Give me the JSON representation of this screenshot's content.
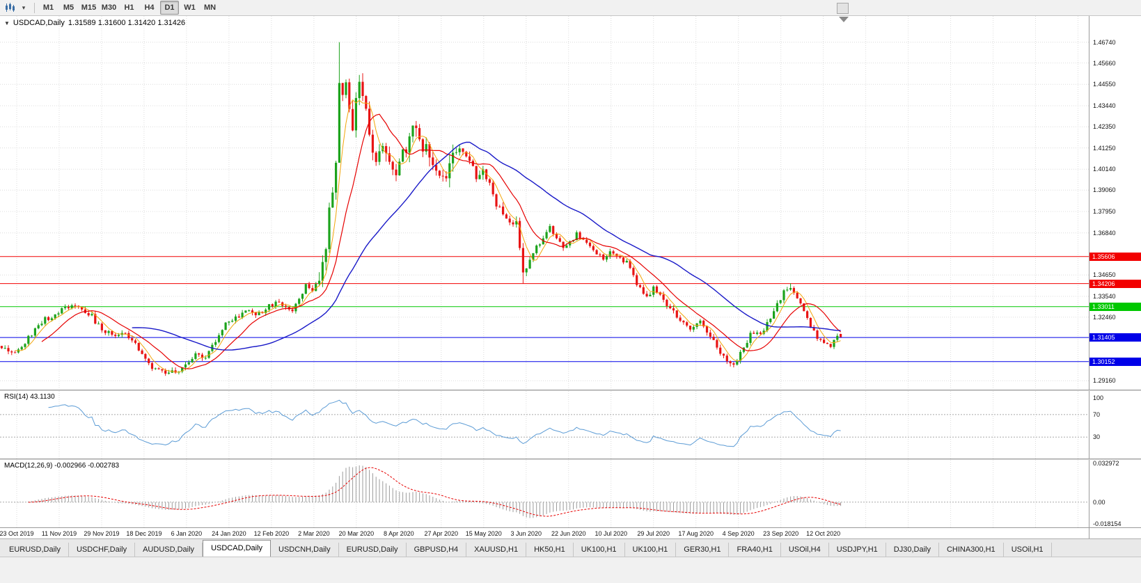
{
  "toolbar": {
    "chart_type_dropdown_icon": "▾",
    "timeframes": [
      {
        "label": "M1",
        "active": false
      },
      {
        "label": "M5",
        "active": false
      },
      {
        "label": "M15",
        "active": false
      },
      {
        "label": "M30",
        "active": false
      },
      {
        "label": "H1",
        "active": false
      },
      {
        "label": "H4",
        "active": false
      },
      {
        "label": "D1",
        "active": true
      },
      {
        "label": "W1",
        "active": false
      },
      {
        "label": "MN",
        "active": false
      }
    ]
  },
  "chart": {
    "collapse_icon": "▼",
    "title_symbol": "USDCAD,Daily",
    "title_ohlc": "1.31589 1.31600 1.31420 1.31426"
  },
  "price_axis": {
    "labels": [
      "1.46740",
      "1.45660",
      "1.44550",
      "1.43440",
      "1.42350",
      "1.41250",
      "1.40140",
      "1.39060",
      "1.37950",
      "1.36840",
      "1.34650",
      "1.33540",
      "1.32460",
      "1.29160"
    ]
  },
  "x_axis_dates": [
    "23 Oct 2019",
    "11 Nov 2019",
    "29 Nov 2019",
    "18 Dec 2019",
    "6 Jan 2020",
    "24 Jan 2020",
    "12 Feb 2020",
    "2 Mar 2020",
    "20 Mar 2020",
    "8 Apr 2020",
    "27 Apr 2020",
    "15 May 2020",
    "3 Jun 2020",
    "22 Jun 2020",
    "10 Jul 2020",
    "29 Jul 2020",
    "17 Aug 2020",
    "4 Sep 2020",
    "23 Sep 2020",
    "12 Oct 2020"
  ],
  "rsi_panel": {
    "label": "RSI(14) 43.1130"
  },
  "macd_panel": {
    "label": "MACD(12,26,9) -0.002966 -0.002783"
  },
  "tab_overflow_icon": "▸",
  "tabs": [
    {
      "label": "EURUSD,Daily",
      "active": false
    },
    {
      "label": "USDCHF,Daily",
      "active": false
    },
    {
      "label": "AUDUSD,Daily",
      "active": false
    },
    {
      "label": "USDCAD,Daily",
      "active": true
    },
    {
      "label": "USDCNH,Daily",
      "active": false
    },
    {
      "label": "EURUSD,Daily",
      "active": false
    },
    {
      "label": "GBPUSD,H4",
      "active": false
    },
    {
      "label": "XAUUSD,H1",
      "active": false
    },
    {
      "label": "HK50,H1",
      "active": false
    },
    {
      "label": "UK100,H1",
      "active": false
    },
    {
      "label": "UK100,H1",
      "active": false
    },
    {
      "label": "GER30,H1",
      "active": false
    },
    {
      "label": "FRA40,H1",
      "active": false
    },
    {
      "label": "USOil,H4",
      "active": false
    },
    {
      "label": "USDJPY,H1",
      "active": false
    },
    {
      "label": "DJ30,Daily",
      "active": false
    },
    {
      "label": "CHINA300,H1",
      "active": false
    },
    {
      "label": "USOil,H1",
      "active": false
    }
  ],
  "colors": {
    "bull": "#1ca31c",
    "bear": "#e81414",
    "ma_fast": "#f2a50a",
    "ma_mid": "#e60000",
    "ma_slow": "#1919c8",
    "rsi_line": "#5b9bd5",
    "macd_hist": "#9b9b9b",
    "macd_signal": "#e60000",
    "grid": "#dcdcdc",
    "level_dotted": "#a8a8a8"
  },
  "chart_data": {
    "type": "candlestick",
    "symbol": "USDCAD",
    "timeframe": "Daily",
    "bars": 252,
    "price_range": [
      1.287,
      1.481
    ],
    "ohlc_last": {
      "open": 1.31589,
      "high": 1.316,
      "low": 1.3142,
      "close": 1.31426
    },
    "close_anchors": [
      [
        0,
        1.3085
      ],
      [
        4,
        1.306
      ],
      [
        8,
        1.314
      ],
      [
        13,
        1.3235
      ],
      [
        17,
        1.327
      ],
      [
        21,
        1.3305
      ],
      [
        24,
        1.329
      ],
      [
        27,
        1.325
      ],
      [
        30,
        1.3175
      ],
      [
        33,
        1.3155
      ],
      [
        36,
        1.317
      ],
      [
        39,
        1.312
      ],
      [
        42,
        1.306
      ],
      [
        45,
        1.2985
      ],
      [
        48,
        1.2962
      ],
      [
        52,
        1.2958
      ],
      [
        55,
        1.3
      ],
      [
        58,
        1.3052
      ],
      [
        61,
        1.304
      ],
      [
        64,
        1.312
      ],
      [
        67,
        1.3205
      ],
      [
        70,
        1.324
      ],
      [
        73,
        1.328
      ],
      [
        76,
        1.3258
      ],
      [
        79,
        1.3292
      ],
      [
        82,
        1.332
      ],
      [
        85,
        1.3295
      ],
      [
        87,
        1.3268
      ],
      [
        89,
        1.334
      ],
      [
        91,
        1.3422
      ],
      [
        93,
        1.339
      ],
      [
        95,
        1.3455
      ],
      [
        97,
        1.3635
      ],
      [
        99,
        1.3925
      ],
      [
        100,
        1.4082
      ],
      [
        101,
        1.45
      ],
      [
        102,
        1.442
      ],
      [
        103,
        1.4455
      ],
      [
        104,
        1.4295
      ],
      [
        105,
        1.4205
      ],
      [
        106,
        1.4345
      ],
      [
        107,
        1.4478
      ],
      [
        108,
        1.4415
      ],
      [
        109,
        1.4298
      ],
      [
        110,
        1.4152
      ],
      [
        112,
        1.4085
      ],
      [
        114,
        1.4165
      ],
      [
        116,
        1.409
      ],
      [
        118,
        1.401
      ],
      [
        120,
        1.4095
      ],
      [
        122,
        1.4175
      ],
      [
        124,
        1.4245
      ],
      [
        126,
        1.415
      ],
      [
        128,
        1.4082
      ],
      [
        130,
        1.4025
      ],
      [
        132,
        1.3958
      ],
      [
        134,
        1.4022
      ],
      [
        136,
        1.4098
      ],
      [
        138,
        1.4128
      ],
      [
        140,
        1.4052
      ],
      [
        142,
        1.3985
      ],
      [
        144,
        1.4005
      ],
      [
        146,
        1.3935
      ],
      [
        148,
        1.3845
      ],
      [
        150,
        1.3788
      ],
      [
        152,
        1.3726
      ],
      [
        154,
        1.3758
      ],
      [
        156,
        1.3492
      ],
      [
        158,
        1.3548
      ],
      [
        160,
        1.3608
      ],
      [
        162,
        1.3662
      ],
      [
        164,
        1.3705
      ],
      [
        166,
        1.3662
      ],
      [
        168,
        1.3595
      ],
      [
        170,
        1.3635
      ],
      [
        172,
        1.3682
      ],
      [
        174,
        1.3652
      ],
      [
        176,
        1.3605
      ],
      [
        178,
        1.3582
      ],
      [
        180,
        1.3548
      ],
      [
        182,
        1.3592
      ],
      [
        184,
        1.3572
      ],
      [
        186,
        1.3542
      ],
      [
        188,
        1.3512
      ],
      [
        190,
        1.3425
      ],
      [
        193,
        1.3352
      ],
      [
        195,
        1.3392
      ],
      [
        197,
        1.3362
      ],
      [
        199,
        1.3312
      ],
      [
        201,
        1.3272
      ],
      [
        203,
        1.3232
      ],
      [
        205,
        1.3202
      ],
      [
        207,
        1.3185
      ],
      [
        209,
        1.3222
      ],
      [
        211,
        1.3172
      ],
      [
        213,
        1.3122
      ],
      [
        215,
        1.3062
      ],
      [
        217,
        1.3028
      ],
      [
        218,
        1.2995
      ],
      [
        220,
        1.3032
      ],
      [
        222,
        1.3092
      ],
      [
        224,
        1.3152
      ],
      [
        226,
        1.3162
      ],
      [
        228,
        1.3185
      ],
      [
        230,
        1.3242
      ],
      [
        232,
        1.3312
      ],
      [
        234,
        1.3382
      ],
      [
        236,
        1.3402
      ],
      [
        238,
        1.3352
      ],
      [
        240,
        1.3282
      ],
      [
        242,
        1.3202
      ],
      [
        244,
        1.3142
      ],
      [
        246,
        1.3112
      ],
      [
        248,
        1.3102
      ],
      [
        250,
        1.3138
      ],
      [
        251,
        1.31426
      ]
    ],
    "spikes": [
      {
        "i": 101,
        "high": 1.4674
      },
      {
        "i": 52,
        "low": 1.2952
      },
      {
        "i": 48,
        "low": 1.2958
      },
      {
        "i": 218,
        "low": 1.299
      },
      {
        "i": 156,
        "low": 1.342
      },
      {
        "i": 124,
        "high": 1.4265
      },
      {
        "i": 236,
        "high": 1.3422
      }
    ],
    "volatility": [
      {
        "from": 0,
        "to": 94,
        "amp": 0.0035
      },
      {
        "from": 95,
        "to": 135,
        "amp": 0.011
      },
      {
        "from": 136,
        "to": 158,
        "amp": 0.006
      },
      {
        "from": 159,
        "to": 251,
        "amp": 0.0036
      }
    ],
    "moving_averages": [
      {
        "period": 5,
        "color_key": "ma_fast"
      },
      {
        "period": 13,
        "color_key": "ma_mid"
      },
      {
        "period": 40,
        "color_key": "ma_slow"
      }
    ],
    "horizontal_lines": [
      {
        "price": 1.35606,
        "label": "1.35606",
        "color": "#f20000"
      },
      {
        "price": 1.34206,
        "label": "1.34206",
        "color": "#f20000"
      },
      {
        "price": 1.33011,
        "label": "1.33011",
        "color": "#00c800"
      },
      {
        "price": 1.31405,
        "label": "1.31405",
        "color": "#0000e8"
      },
      {
        "price": 1.30152,
        "label": "1.30152",
        "color": "#0000e8"
      }
    ],
    "rsi": {
      "period": 14,
      "current": 43.113,
      "levels": [
        70,
        30
      ],
      "display_range": [
        -8,
        112
      ],
      "axis_labels": [
        {
          "text": "100",
          "value": 100
        },
        {
          "text": "70",
          "value": 70
        },
        {
          "text": "30",
          "value": 30
        }
      ]
    },
    "macd": {
      "fast": 12,
      "slow": 26,
      "signal": 9,
      "current_main": -0.002966,
      "current_signal": -0.002783,
      "range": [
        -0.0205,
        0.0345
      ],
      "axis_labels": [
        {
          "text": "0.032972",
          "value": 0.0322
        },
        {
          "text": "0.00",
          "value": 0
        },
        {
          "text": "-0.018154",
          "value": -0.0178
        }
      ]
    }
  }
}
